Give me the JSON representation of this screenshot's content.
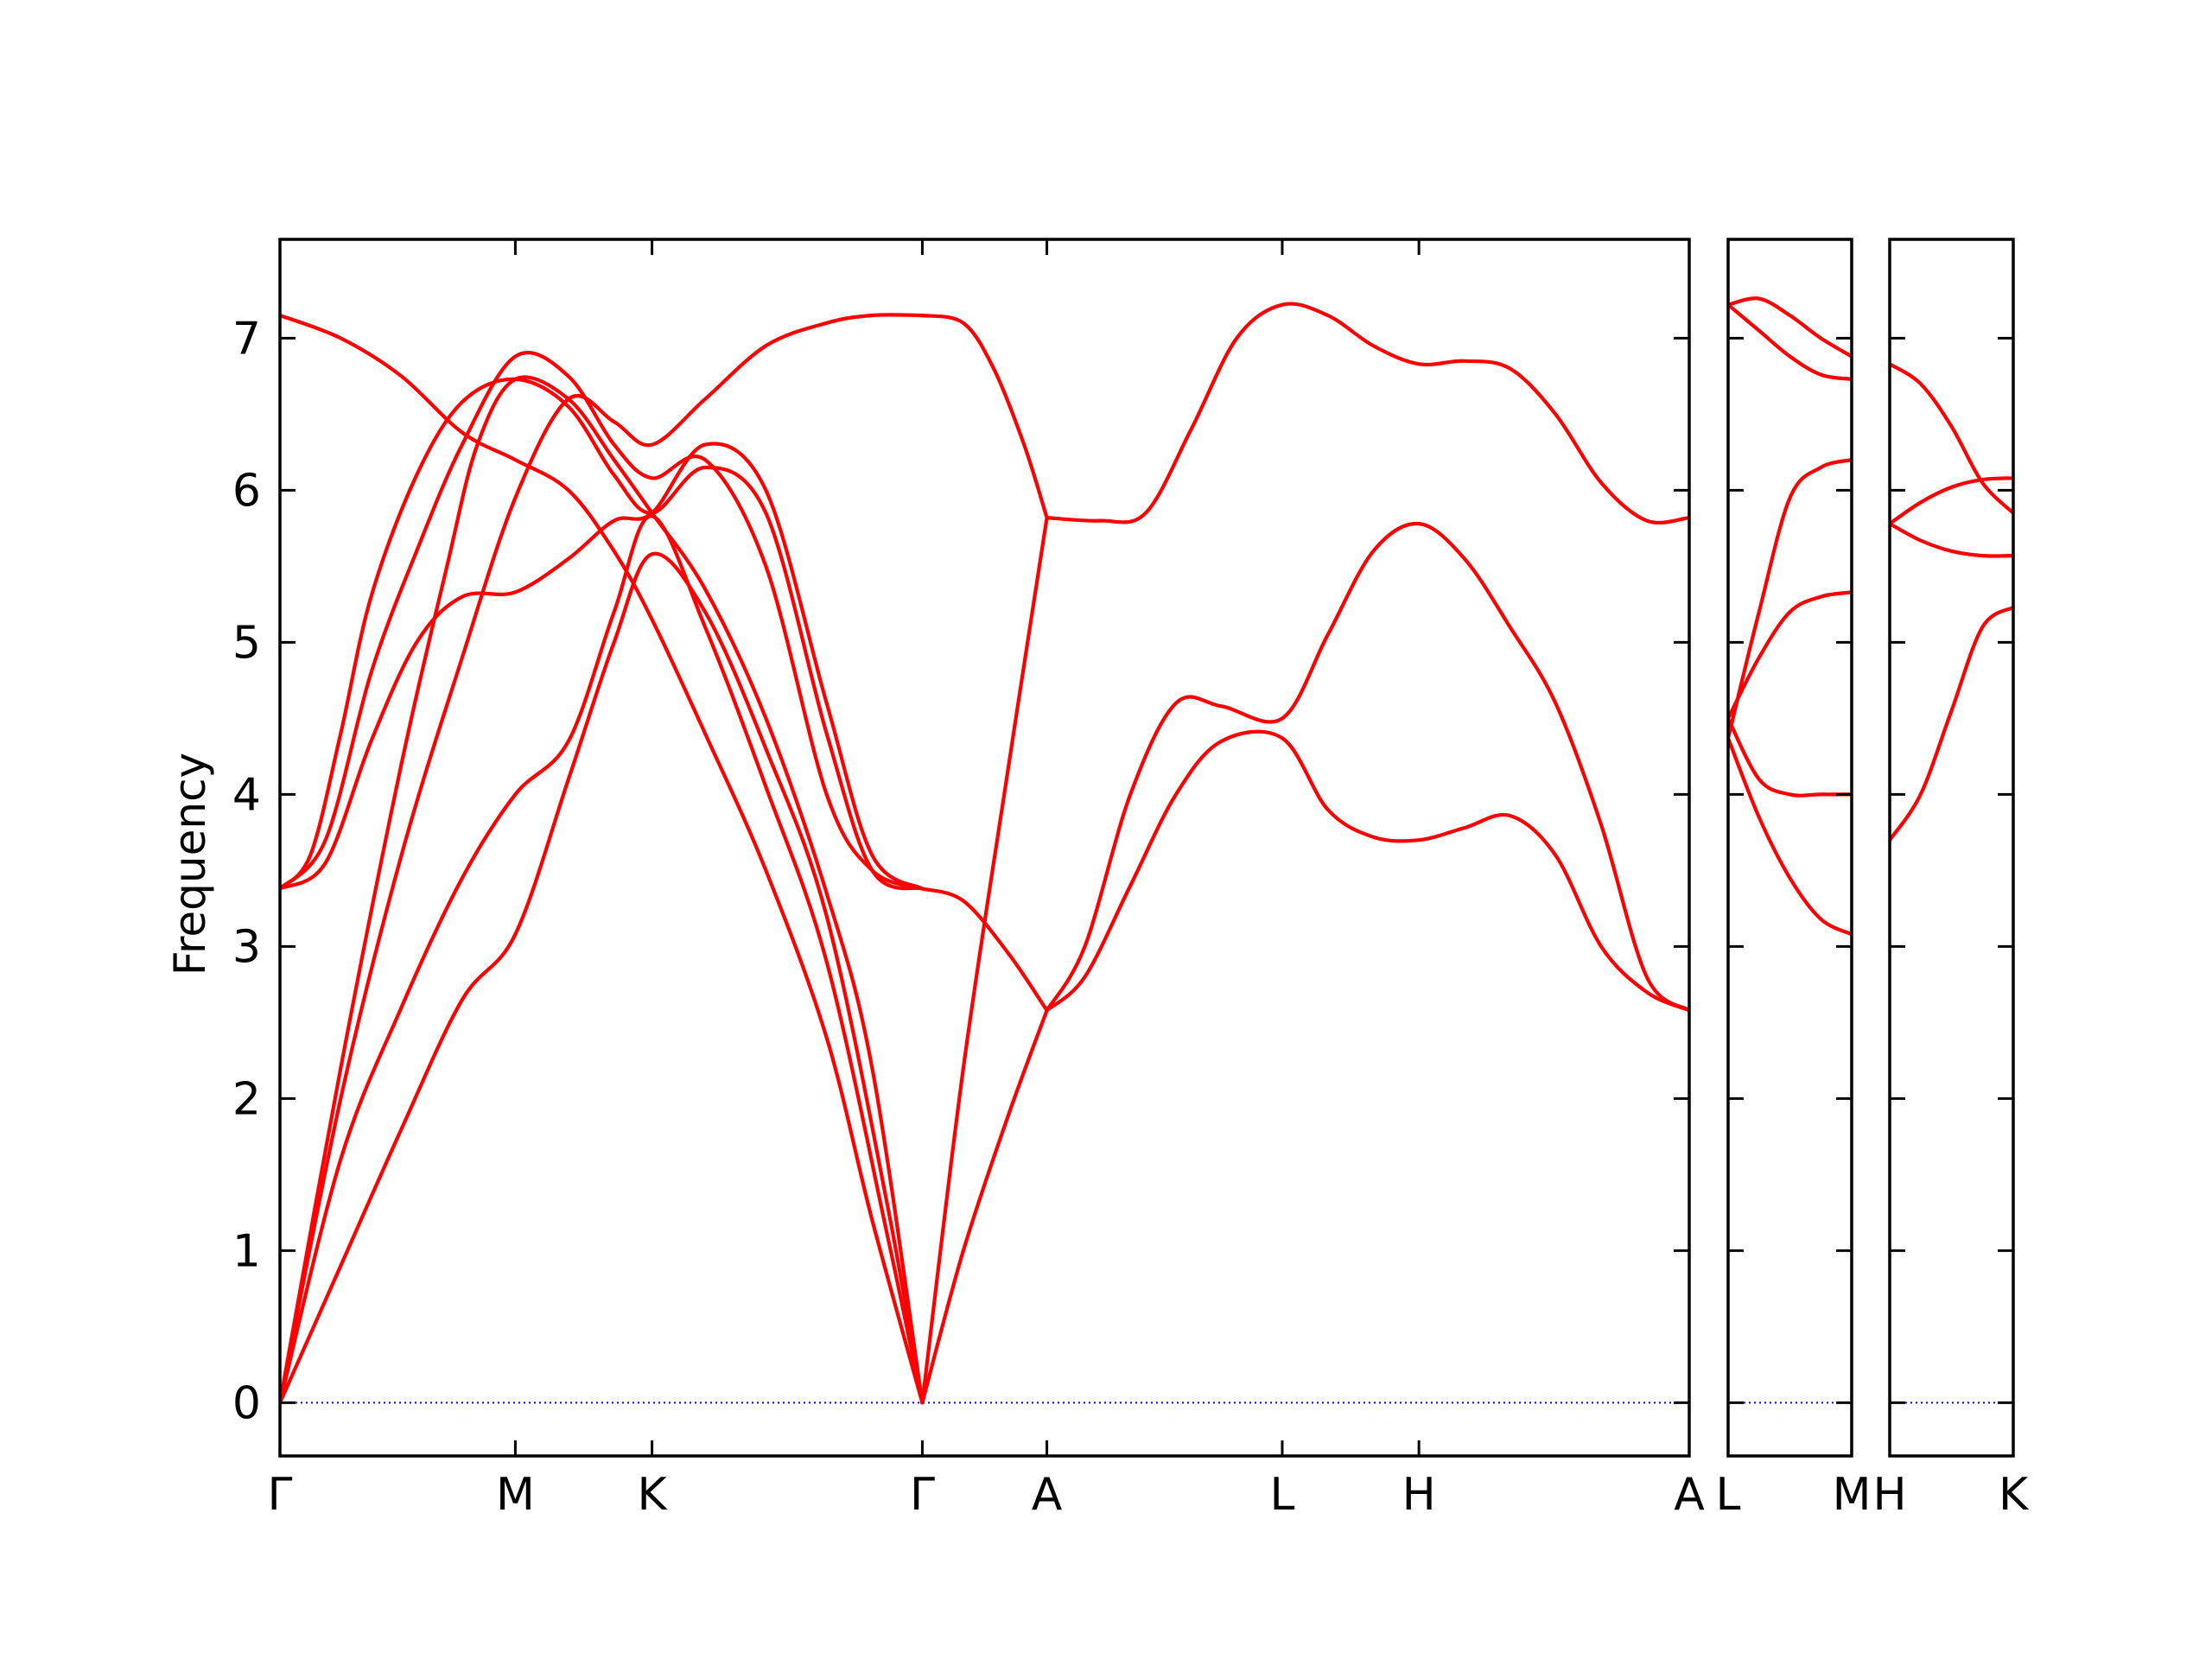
{
  "chart_data": {
    "type": "line",
    "title": "",
    "ylabel": "Frequency",
    "ylim": [
      -0.35,
      7.65
    ],
    "yticks": [
      0,
      1,
      2,
      3,
      4,
      5,
      6,
      7
    ],
    "grid": false,
    "line_color": "#ff0000",
    "zero_line_color": "#0000ff",
    "zero_line_value": 0,
    "panels": [
      {
        "xlim": [
          0,
          9.28
        ],
        "ticks": [
          {
            "x": 0.0,
            "label": "Γ"
          },
          {
            "x": 1.55,
            "label": "M"
          },
          {
            "x": 2.45,
            "label": "K"
          },
          {
            "x": 4.23,
            "label": "Γ"
          },
          {
            "x": 5.05,
            "label": "A"
          },
          {
            "x": 6.6,
            "label": "L"
          },
          {
            "x": 7.5,
            "label": "H"
          },
          {
            "x": 9.28,
            "label": "A"
          }
        ],
        "series": [
          {
            "x": [
              0,
              0.4,
              0.8,
              1.2,
              1.55,
              1.9,
              2.2,
              2.45,
              2.8,
              3.2,
              3.6,
              4.0,
              4.23
            ],
            "y": [
              0,
              0.9,
              1.8,
              2.65,
              3.08,
              4.1,
              5.0,
              5.58,
              5.2,
              4.3,
              3.2,
              1.3,
              0
            ]
          },
          {
            "x": [
              0,
              0.4,
              0.8,
              1.2,
              1.55,
              1.9,
              2.2,
              2.45,
              2.8,
              3.2,
              3.6,
              4.0,
              4.23
            ],
            "y": [
              0,
              1.6,
              2.6,
              3.45,
              4.0,
              4.35,
              5.2,
              5.83,
              5.1,
              4.05,
              2.9,
              1.1,
              0
            ]
          },
          {
            "x": [
              0,
              0.3,
              0.6,
              0.9,
              1.2,
              1.55,
              1.9,
              2.2,
              2.45,
              2.8,
              3.2,
              3.6,
              3.9,
              4.23
            ],
            "y": [
              3.38,
              3.55,
              4.35,
              5.0,
              5.3,
              5.33,
              5.55,
              5.8,
              5.85,
              6.3,
              6.0,
              4.6,
              3.6,
              3.38
            ]
          },
          {
            "x": [
              0,
              0.2,
              0.4,
              0.6,
              0.9,
              1.2,
              1.55,
              1.9,
              2.2,
              2.45,
              2.8,
              3.2,
              3.6,
              3.9,
              4.23
            ],
            "y": [
              3.38,
              3.6,
              4.4,
              5.3,
              6.1,
              6.58,
              6.73,
              6.55,
              6.1,
              5.85,
              6.15,
              5.85,
              4.4,
              3.5,
              3.38
            ]
          },
          {
            "x": [
              0,
              0.4,
              0.8,
              1.1,
              1.3,
              1.55,
              1.9,
              2.2,
              2.45,
              2.8,
              3.2,
              3.6,
              3.9,
              4.23
            ],
            "y": [
              0,
              2.2,
              4.2,
              5.5,
              6.3,
              6.73,
              6.6,
              6.2,
              5.85,
              5.35,
              4.5,
              3.35,
              2.2,
              0
            ]
          },
          {
            "x": [
              0,
              0.3,
              0.6,
              0.9,
              1.2,
              1.55,
              1.9,
              2.2,
              2.45,
              2.8,
              3.2,
              3.6,
              3.9,
              4.23
            ],
            "y": [
              3.38,
              3.7,
              4.8,
              5.6,
              6.3,
              6.88,
              6.75,
              6.3,
              6.08,
              6.2,
              5.5,
              4.0,
              3.5,
              3.38
            ]
          },
          {
            "x": [
              0,
              0.4,
              0.8,
              1.2,
              1.55,
              1.9,
              2.2,
              2.45,
              2.8,
              3.2,
              3.6,
              3.9,
              4.23
            ],
            "y": [
              7.15,
              7.0,
              6.75,
              6.38,
              6.2,
              6.0,
              5.6,
              5.15,
              4.4,
              3.5,
              2.4,
              1.2,
              0
            ]
          },
          {
            "x": [
              0,
              0.4,
              0.8,
              1.2,
              1.55,
              1.9,
              2.2,
              2.45,
              2.8,
              3.2,
              3.6,
              3.9,
              4.23
            ],
            "y": [
              0,
              2.0,
              3.6,
              4.9,
              5.95,
              6.6,
              6.45,
              6.3,
              6.6,
              6.95,
              7.1,
              7.15,
              7.15
            ]
          },
          {
            "x": [
              4.23,
              4.5,
              4.8,
              5.05
            ],
            "y": [
              3.38,
              3.3,
              2.95,
              2.58
            ]
          },
          {
            "x": [
              4.23,
              4.5,
              4.8,
              5.05
            ],
            "y": [
              0,
              1.0,
              1.9,
              2.58
            ]
          },
          {
            "x": [
              4.23,
              4.5,
              4.8,
              5.05
            ],
            "y": [
              0,
              2.2,
              4.2,
              5.82
            ]
          },
          {
            "x": [
              4.23,
              4.5,
              4.7,
              4.9,
              5.05
            ],
            "y": [
              7.15,
              7.1,
              6.8,
              6.3,
              5.82
            ]
          },
          {
            "x": [
              5.05,
              5.3,
              5.6,
              5.9,
              6.2,
              6.6,
              6.9,
              7.2,
              7.5,
              7.8,
              8.1,
              8.4,
              8.7,
              9.0,
              9.28
            ],
            "y": [
              2.58,
              2.8,
              3.4,
              4.0,
              4.35,
              4.37,
              3.9,
              3.72,
              3.7,
              3.78,
              3.86,
              3.6,
              3.0,
              2.7,
              2.58
            ]
          },
          {
            "x": [
              5.05,
              5.3,
              5.6,
              5.9,
              6.2,
              6.6,
              6.9,
              7.2,
              7.5,
              7.8,
              8.1,
              8.4,
              8.7,
              9.0,
              9.28
            ],
            "y": [
              2.58,
              3.0,
              4.0,
              4.6,
              4.58,
              4.5,
              5.05,
              5.6,
              5.78,
              5.55,
              5.1,
              4.6,
              3.8,
              2.8,
              2.58
            ]
          },
          {
            "x": [
              5.05,
              5.4,
              5.7,
              6.0,
              6.3,
              6.6,
              6.9,
              7.2,
              7.5,
              7.8,
              8.1,
              8.4,
              8.7,
              9.0,
              9.28
            ],
            "y": [
              5.82,
              5.8,
              5.85,
              6.4,
              7.0,
              7.22,
              7.15,
              6.95,
              6.83,
              6.85,
              6.8,
              6.5,
              6.05,
              5.8,
              5.82
            ]
          }
        ]
      },
      {
        "xlim": [
          0,
          1
        ],
        "ticks": [
          {
            "x": 0,
            "label": "L"
          },
          {
            "x": 1,
            "label": "M"
          }
        ],
        "series": [
          {
            "x": [
              0,
              0.25,
              0.5,
              0.75,
              1
            ],
            "y": [
              4.37,
              3.85,
              3.45,
              3.18,
              3.08
            ]
          },
          {
            "x": [
              0,
              0.25,
              0.5,
              0.75,
              1
            ],
            "y": [
              4.5,
              4.1,
              4.0,
              4.0,
              4.0
            ]
          },
          {
            "x": [
              0,
              0.25,
              0.5,
              0.75,
              1
            ],
            "y": [
              4.5,
              4.9,
              5.2,
              5.3,
              5.33
            ]
          },
          {
            "x": [
              0,
              0.25,
              0.5,
              0.75,
              1
            ],
            "y": [
              4.37,
              5.2,
              5.95,
              6.15,
              6.2
            ]
          },
          {
            "x": [
              0,
              0.25,
              0.5,
              0.75,
              1
            ],
            "y": [
              7.22,
              7.05,
              6.88,
              6.76,
              6.73
            ]
          },
          {
            "x": [
              0,
              0.25,
              0.5,
              0.75,
              1
            ],
            "y": [
              7.22,
              7.26,
              7.15,
              7.0,
              6.88
            ]
          }
        ]
      },
      {
        "xlim": [
          0,
          1
        ],
        "ticks": [
          {
            "x": 0,
            "label": "H"
          },
          {
            "x": 1,
            "label": "K"
          }
        ],
        "series": [
          {
            "x": [
              0,
              0.25,
              0.5,
              0.75,
              1
            ],
            "y": [
              3.7,
              4.0,
              4.55,
              5.1,
              5.23
            ]
          },
          {
            "x": [
              0,
              0.25,
              0.5,
              0.75,
              1
            ],
            "y": [
              5.78,
              5.67,
              5.6,
              5.57,
              5.57
            ]
          },
          {
            "x": [
              0,
              0.25,
              0.5,
              0.75,
              1
            ],
            "y": [
              5.78,
              5.92,
              6.02,
              6.07,
              6.08
            ]
          },
          {
            "x": [
              0,
              0.25,
              0.5,
              0.75,
              1
            ],
            "y": [
              6.83,
              6.7,
              6.42,
              6.05,
              5.85
            ]
          }
        ]
      }
    ]
  }
}
